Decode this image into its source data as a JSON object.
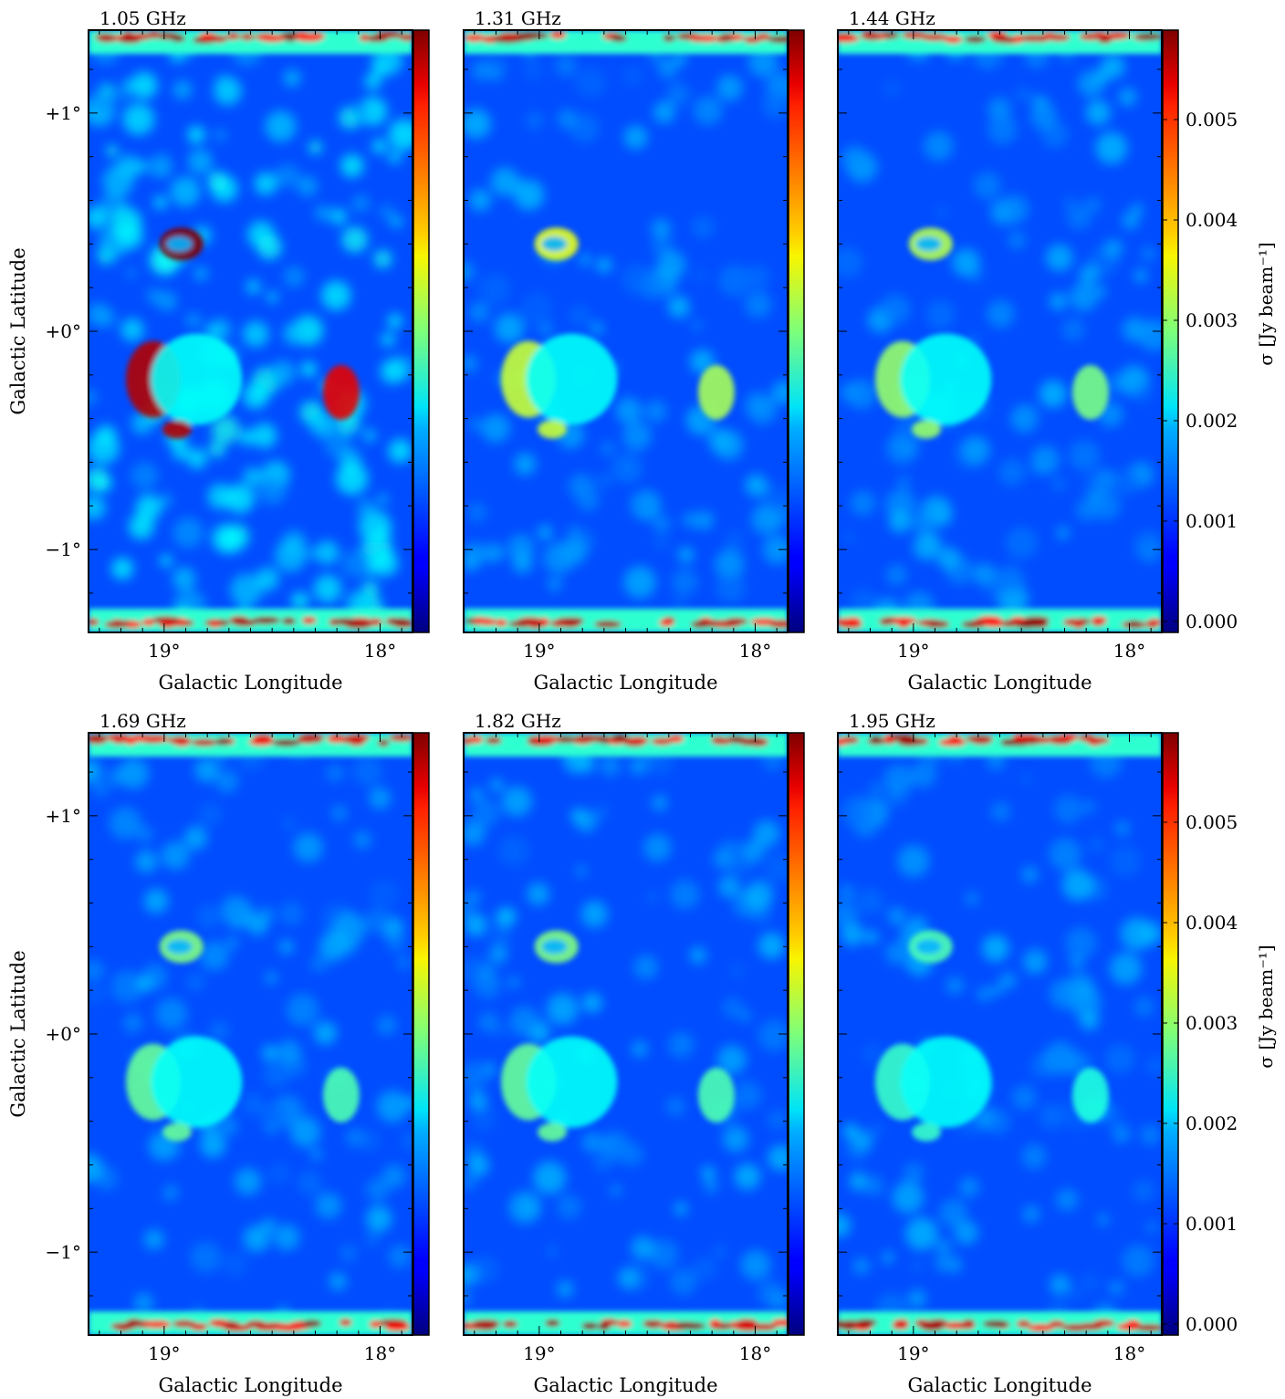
{
  "chart_data": {
    "type": "heatmap",
    "colormap": "jet",
    "xlabel": "Galactic Longitude",
    "ylabel": "Galactic Latitude",
    "colorbar_label": "σ [Jy beam⁻¹]",
    "x_range": [
      19.35,
      17.85
    ],
    "y_range": [
      -1.38,
      1.38
    ],
    "x_ticks": [
      {
        "value": 19,
        "label": "19°"
      },
      {
        "value": 18,
        "label": "18°"
      }
    ],
    "y_ticks": [
      {
        "value": 1,
        "label": "+1°"
      },
      {
        "value": 0,
        "label": "+0°"
      },
      {
        "value": -1,
        "label": "−1°"
      }
    ],
    "color_range": [
      0.0,
      0.006
    ],
    "colorbar_ticks": [
      "0.000",
      "0.001",
      "0.002",
      "0.003",
      "0.004",
      "0.005"
    ],
    "colorbar_tick_values": [
      0.0,
      0.001,
      0.002,
      0.003,
      0.004,
      0.005
    ],
    "panels": [
      {
        "frequency": "1.05 GHz",
        "row": 0,
        "col": 0,
        "max_level": 1.0,
        "noisy": true
      },
      {
        "frequency": "1.31 GHz",
        "row": 0,
        "col": 1,
        "max_level": 0.6,
        "noisy": false
      },
      {
        "frequency": "1.44 GHz",
        "row": 0,
        "col": 2,
        "max_level": 0.55,
        "noisy": false
      },
      {
        "frequency": "1.69 GHz",
        "row": 1,
        "col": 0,
        "max_level": 0.5,
        "noisy": false
      },
      {
        "frequency": "1.82 GHz",
        "row": 1,
        "col": 1,
        "max_level": 0.5,
        "noisy": false
      },
      {
        "frequency": "1.95 GHz",
        "row": 1,
        "col": 2,
        "max_level": 0.45,
        "noisy": false
      }
    ]
  }
}
